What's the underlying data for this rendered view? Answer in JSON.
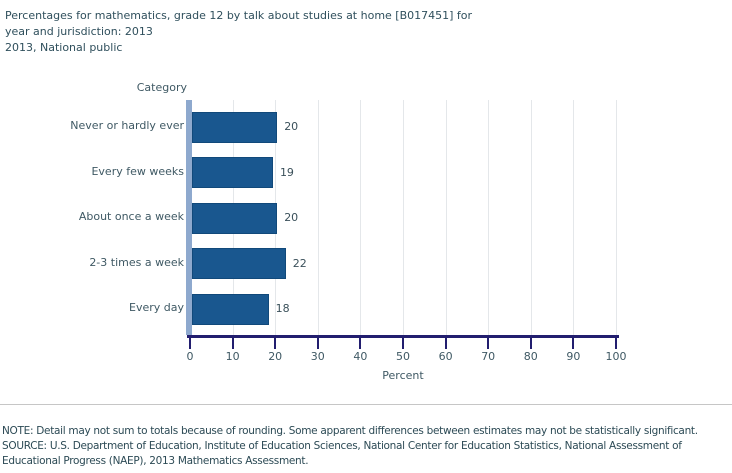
{
  "header": {
    "title_lines": [
      "Percentages for mathematics, grade 12 by talk about studies at home [B017451] for",
      "year and jurisdiction: 2013",
      "2013, National public"
    ]
  },
  "chart_data": {
    "type": "bar",
    "orientation": "horizontal",
    "title": "Percentages for mathematics, grade 12 by talk about studies at home [B017451] for year and jurisdiction: 2013, National public",
    "category_axis_label": "Category",
    "value_axis_label": "Percent",
    "categories": [
      "Never or hardly ever",
      "Every few weeks",
      "About once a week",
      "2-3 times a week",
      "Every day"
    ],
    "values": [
      20,
      19,
      20,
      22,
      18
    ],
    "xlim": [
      0,
      100
    ],
    "x_ticks": [
      0,
      10,
      20,
      30,
      40,
      50,
      60,
      70,
      80,
      90,
      100
    ],
    "grid": true,
    "legend": "none",
    "colors": {
      "bar": "#19578f",
      "bar_border": "#11497a",
      "category_baseline": "#8ea9ce",
      "value_axis": "#221e6f",
      "gridline": "#e4e7ea"
    }
  },
  "footer": {
    "note_lines": [
      "NOTE:  Detail may not sum to totals because of rounding. Some apparent differences between estimates may not be statistically significant.",
      "SOURCE: U.S. Department of Education, Institute of Education Sciences, National Center for Education Statistics, National Assessment of",
      "Educational Progress (NAEP), 2013 Mathematics Assessment."
    ]
  }
}
